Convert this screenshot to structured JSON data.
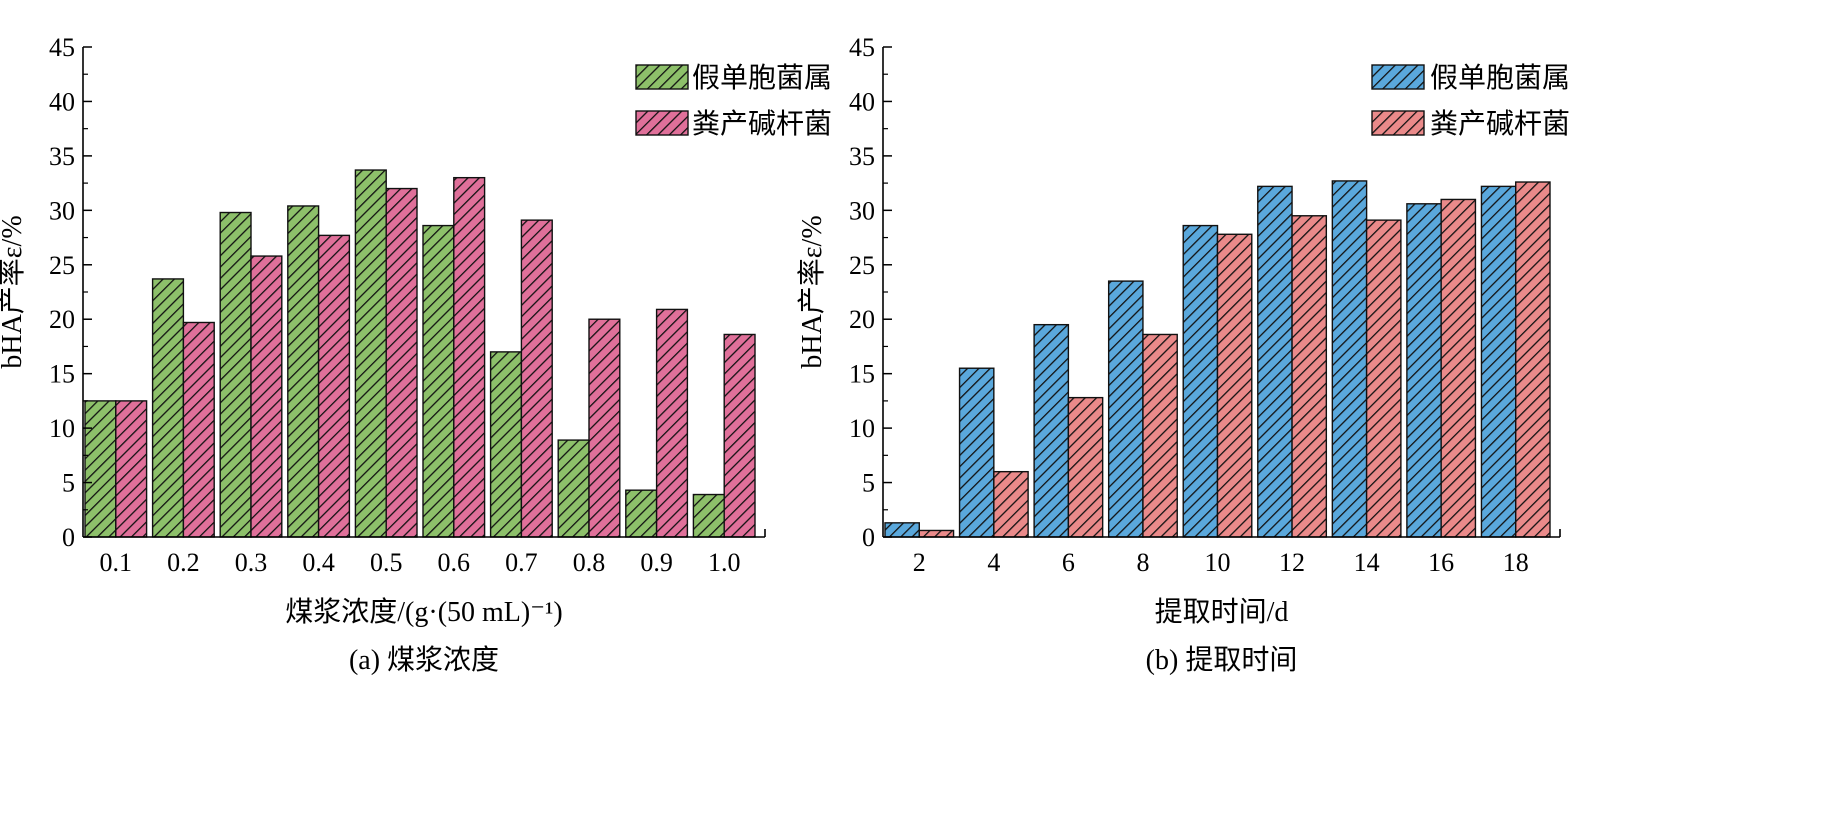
{
  "chart_data": [
    {
      "type": "bar",
      "caption": "(a) 煤浆浓度",
      "xlabel": "煤浆浓度/(g·(50 mL)⁻¹)",
      "ylabel": "bHA产率ε/%",
      "ylim": [
        0,
        45
      ],
      "yticks": [
        0,
        5,
        10,
        15,
        20,
        25,
        30,
        35,
        40,
        45
      ],
      "categories": [
        "0.1",
        "0.2",
        "0.3",
        "0.4",
        "0.5",
        "0.6",
        "0.7",
        "0.8",
        "0.9",
        "1.0"
      ],
      "legend_position": "top-right",
      "grid": false,
      "series": [
        {
          "name": "假单胞菌属",
          "color": "#8dc06a",
          "values": [
            12.5,
            23.7,
            29.8,
            30.4,
            33.7,
            28.6,
            17.0,
            8.9,
            4.3,
            3.9
          ]
        },
        {
          "name": "粪产碱杆菌",
          "color": "#e0709a",
          "values": [
            12.5,
            19.7,
            25.8,
            27.7,
            32.0,
            33.0,
            29.1,
            20.0,
            20.9,
            18.6
          ]
        }
      ]
    },
    {
      "type": "bar",
      "caption": "(b) 提取时间",
      "xlabel": "提取时间/d",
      "ylabel": "bHA产率ε/%",
      "ylim": [
        0,
        45
      ],
      "yticks": [
        0,
        5,
        10,
        15,
        20,
        25,
        30,
        35,
        40,
        45
      ],
      "categories": [
        "2",
        "4",
        "6",
        "8",
        "10",
        "12",
        "14",
        "16",
        "18"
      ],
      "legend_position": "top-right",
      "grid": false,
      "series": [
        {
          "name": "假单胞菌属",
          "color": "#5aa8dc",
          "values": [
            1.3,
            15.5,
            19.5,
            23.5,
            28.6,
            32.2,
            32.7,
            30.6,
            32.2
          ]
        },
        {
          "name": "粪产碱杆菌",
          "color": "#ea8a8a",
          "values": [
            0.6,
            6.0,
            12.8,
            18.6,
            27.8,
            29.5,
            29.1,
            31.0,
            32.6
          ]
        }
      ]
    }
  ]
}
